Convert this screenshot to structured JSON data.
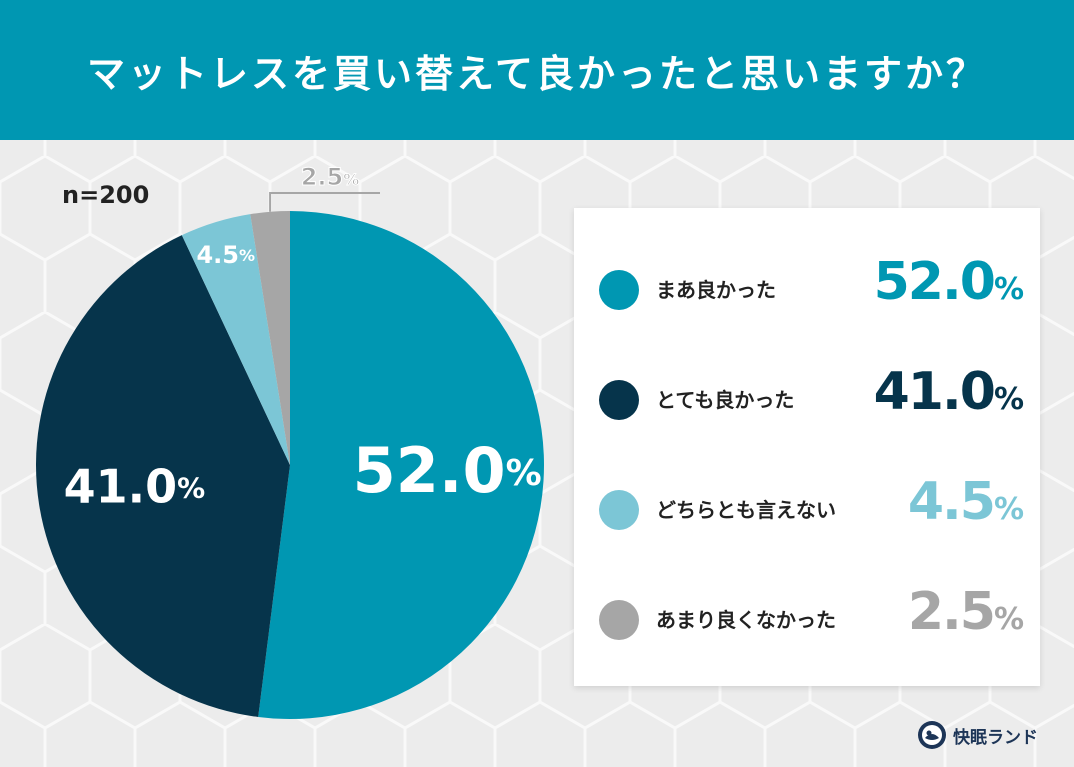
{
  "header": {
    "title": "マットレスを買い替えて良かったと思いますか？"
  },
  "sample_size": "n=200",
  "chart_data": {
    "type": "pie",
    "title": "マットレスを買い替えて良かったと思いますか？",
    "categories": [
      "まあ良かった",
      "とても良かった",
      "どちらとも言えない",
      "あまり良くなかった"
    ],
    "values": [
      52.0,
      41.0,
      4.5,
      2.5
    ],
    "colors": [
      "#0097b2",
      "#06344b",
      "#7cc6d6",
      "#a6a6a6"
    ],
    "slice_labels": [
      "52.0",
      "41.0",
      "4.5",
      "2.5"
    ],
    "unit": "%",
    "start": "12 o'clock",
    "direction": "clockwise",
    "legend_position": "right"
  },
  "legend": [
    {
      "label": "まあ良かった",
      "value": "52.0",
      "unit": "%",
      "color": "#0097b2"
    },
    {
      "label": "とても良かった",
      "value": "41.0",
      "unit": "%",
      "color": "#06344b"
    },
    {
      "label": "どちらとも言えない",
      "value": "4.5",
      "unit": "%",
      "color": "#7cc6d6"
    },
    {
      "label": "あまり良くなかった",
      "value": "2.5",
      "unit": "%",
      "color": "#a6a6a6"
    }
  ],
  "brand": {
    "name": "快眠ランド",
    "logo_icon": "sleeping-person-logo-icon"
  }
}
